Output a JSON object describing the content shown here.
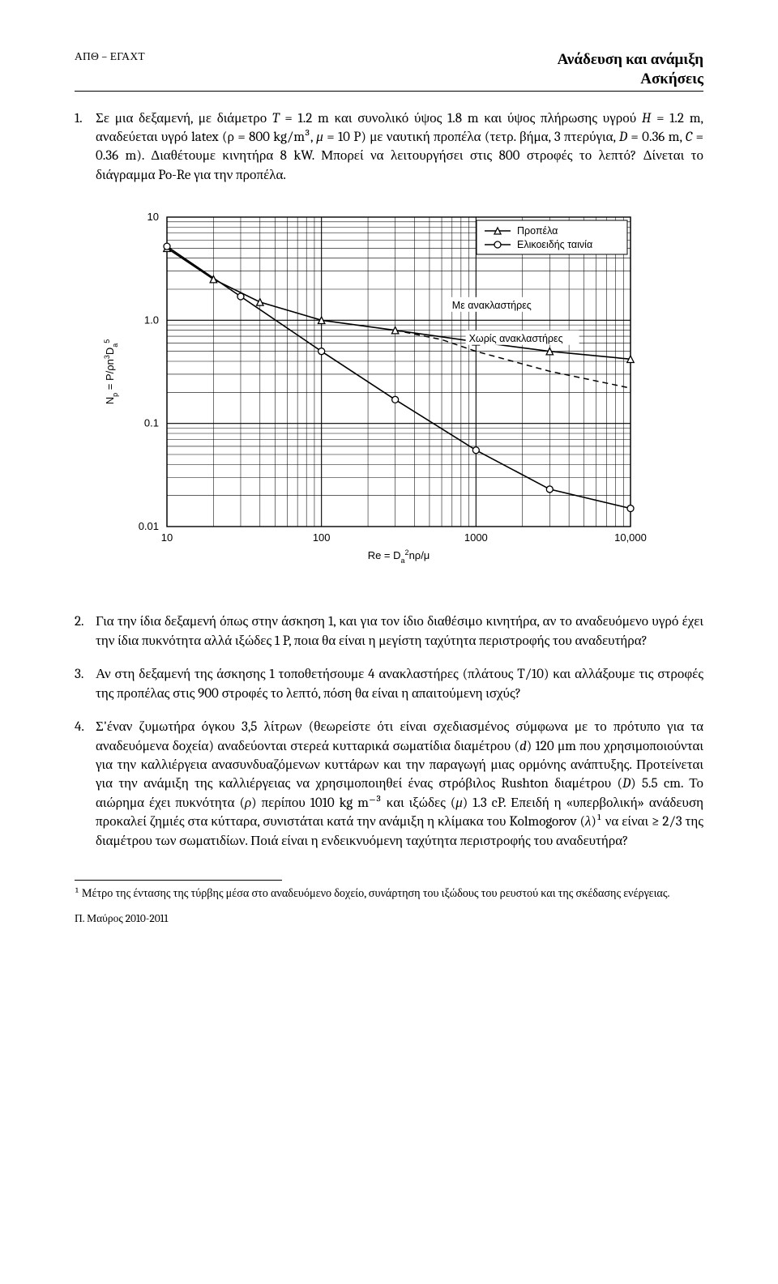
{
  "header": {
    "left": "ΑΠΘ – ΕΓΑΧΤ",
    "right1": "Ανάδευση και ανάμιξη",
    "right2": "Ασκήσεις"
  },
  "ex1": {
    "num": "1.",
    "text_a": "Σε μια δεξαμενή, με διάμετρο ",
    "T": "T",
    "text_b": " = 1.2 m και συνολικό ύψος 1.8 m και ύψος πλήρωσης υγρού ",
    "H": "H",
    "text_c": " = 1.2 m, αναδεύεται υγρό latex (ρ = 800 kg/m³, ",
    "mu": "μ",
    "text_d": " = 10 P) με ναυτική προπέλα (τετρ. βήμα, 3 πτερύγια, ",
    "D": "D",
    "text_e": " = 0.36 m, ",
    "C": "C",
    "text_f": " = 0.36 m). Διαθέτουμε κινητήρα 8 kW. Μπορεί να λειτουργήσει στις 800 στροφές το λεπτό? Δίνεται το διάγραμμα Po-Re για την προπέλα."
  },
  "chart": {
    "type": "line-loglog",
    "y_label_html": "N<sub>p</sub> = P/ρn³D<sub>a</sub><sup>5</sup>",
    "x_label_html": "Re = D<sub>a</sub>²nρ/μ",
    "x_ticks": [
      "10",
      "100",
      "1000",
      "10,000"
    ],
    "y_ticks": [
      "0.01",
      "0.1",
      "1.0",
      "10"
    ],
    "xlim": [
      10,
      10000
    ],
    "ylim": [
      0.01,
      10
    ],
    "legend": [
      {
        "marker": "triangle",
        "label": "Προπέλα"
      },
      {
        "marker": "circle",
        "label": "Ελικοειδής ταινία"
      }
    ],
    "annotations": {
      "with_baffles": "Με ανακλαστήρες",
      "without_baffles": "Χωρίς ανακλαστήρες"
    },
    "curves": {
      "propeller_baffled": {
        "points": [
          [
            10,
            5.0
          ],
          [
            20,
            2.5
          ],
          [
            40,
            1.5
          ],
          [
            100,
            1.0
          ],
          [
            300,
            0.8
          ],
          [
            1000,
            0.62
          ],
          [
            3000,
            0.5
          ],
          [
            10000,
            0.42
          ]
        ]
      },
      "propeller_unbaffled": {
        "points": [
          [
            300,
            0.8
          ],
          [
            600,
            0.65
          ],
          [
            1000,
            0.5
          ],
          [
            3000,
            0.32
          ],
          [
            10000,
            0.22
          ]
        ],
        "dashed": true
      },
      "helical": {
        "points": [
          [
            10,
            5.2
          ],
          [
            30,
            1.7
          ],
          [
            100,
            0.5
          ],
          [
            300,
            0.17
          ],
          [
            1000,
            0.055
          ],
          [
            3000,
            0.023
          ],
          [
            10000,
            0.015
          ]
        ],
        "markers": [
          [
            10,
            5.2
          ],
          [
            30,
            1.7
          ],
          [
            100,
            0.5
          ],
          [
            300,
            0.17
          ],
          [
            1000,
            0.055
          ],
          [
            3000,
            0.023
          ],
          [
            10000,
            0.015
          ]
        ]
      }
    },
    "colors": {
      "ink": "#000000",
      "bg": "#ffffff"
    }
  },
  "ex2": {
    "num": "2.",
    "text": "Για την ίδια δεξαμενή όπως στην άσκηση 1, και για τον ίδιο διαθέσιμο κινητήρα, αν το αναδευόμενο υγρό έχει την ίδια πυκνότητα αλλά ιξώδες 1 P, ποια θα είναι η μεγίστη ταχύτητα περιστροφής του αναδευτήρα?"
  },
  "ex3": {
    "num": "3.",
    "text": "Αν στη δεξαμενή της άσκησης 1 τοποθετήσουμε 4 ανακλαστήρες (πλάτους T/10) και αλλάξουμε τις στροφές της προπέλας στις 900 στροφές το λεπτό, πόση θα είναι η απαιτούμενη ισχύς?"
  },
  "ex4": {
    "num": "4.",
    "a": "Σ'έναν ζυμωτήρα όγκου 3,5 λίτρων (θεωρείστε ότι είναι σχεδιασμένος σύμφωνα με το πρότυπο για τα αναδευόμενα δοχεία) αναδεύονται στερεά κυτταρικά σωματίδια διαμέτρου (",
    "d": "d",
    "b": ") 120 μm που χρησιμοποιούνται για την καλλιέργεια ανασυνδυαζόμενων κυττάρων και την παραγωγή μιας ορμόνης ανάπτυξης. Προτείνεται για την ανάμιξη της καλλιέργειας να χρησιμοποιηθεί ένας στρόβιλος Rushton διαμέτρου (",
    "D": "D",
    "c": ") 5.5 cm. Το αιώρημα έχει πυκνότητα (",
    "rho": "ρ",
    "e": ") περίπου 1010 kg m⁻³ και ιξώδες (",
    "mu": "μ",
    "f": ") 1.3 cP. Επειδή η «υπερβολική» ανάδευση προκαλεί ζημιές στα κύτταρα, συνιστάται κατά την ανάμιξη η κλίμακα του Kolmogorov (",
    "lam": "λ",
    "g": ")¹ να είναι ≥ 2/3 της διαμέτρου των σωματιδίων. Ποιά είναι η ενδεικνυόμενη ταχύτητα περιστροφής του αναδευτήρα?"
  },
  "footnote": {
    "text": "¹ Μέτρο της έντασης της τύρβης μέσα στο αναδευόμενο δοχείο, συνάρτηση του ιξώδους του ρευστού και της σκέδασης ενέργειας."
  },
  "footer": {
    "text": "Π. Μαύρος 2010-2011"
  }
}
